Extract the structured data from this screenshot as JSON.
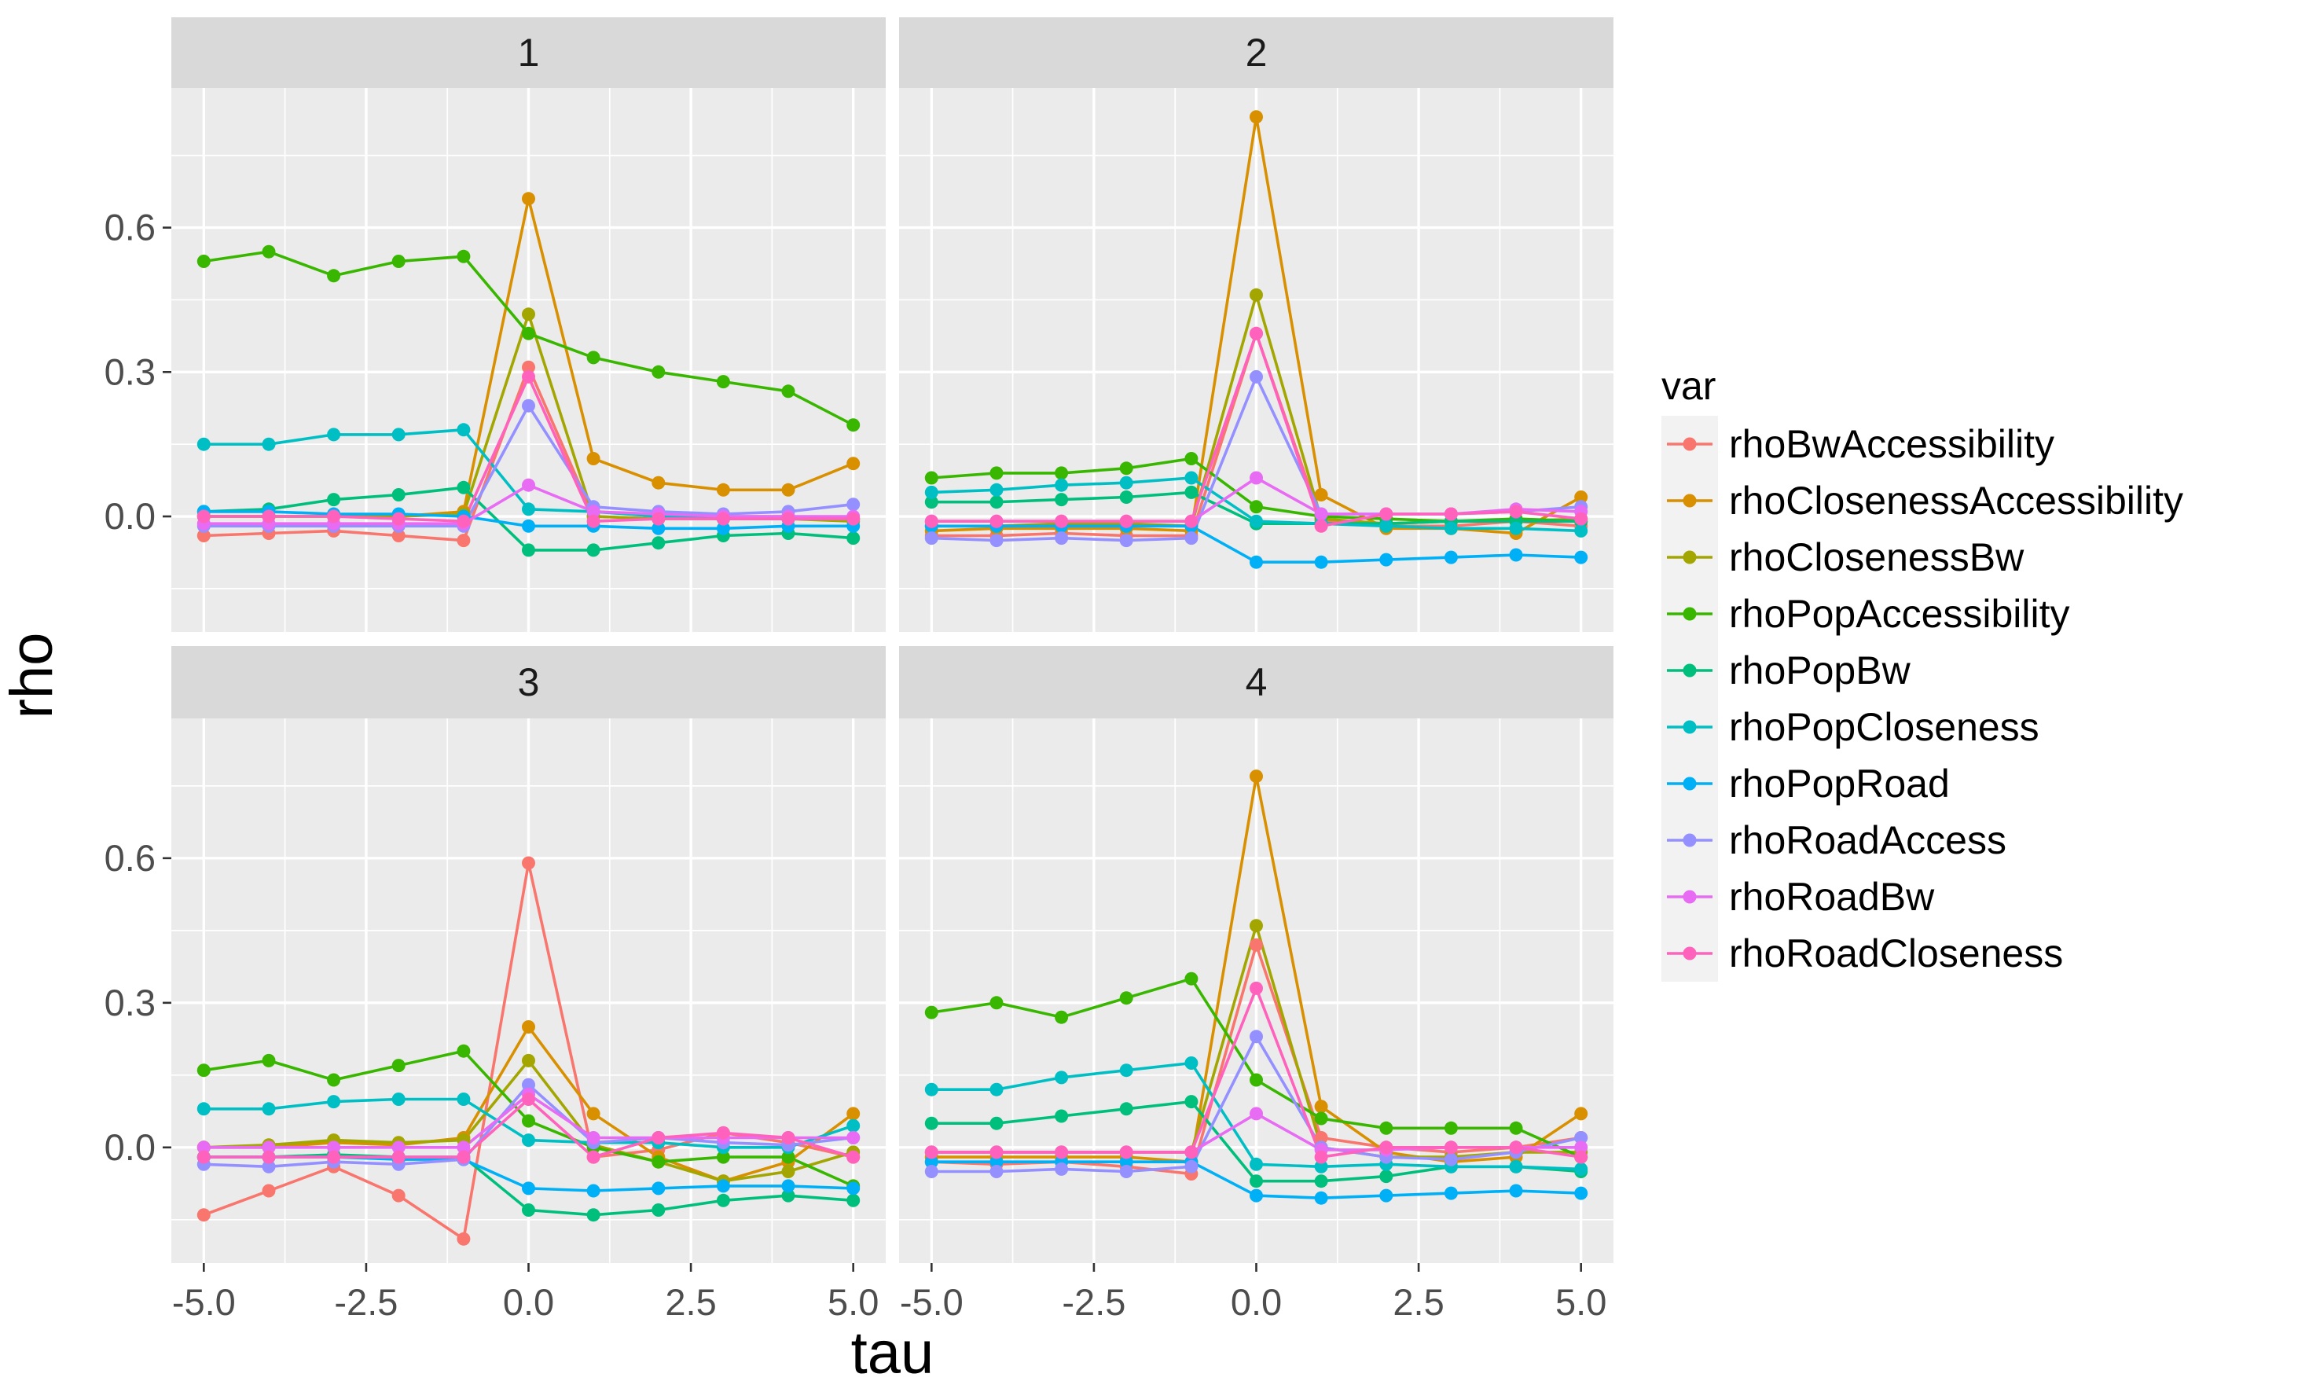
{
  "chart_data": {
    "type": "line",
    "xlabel": "tau",
    "ylabel": "rho",
    "x": [
      -5,
      -4,
      -3,
      -2,
      -1,
      0,
      1,
      2,
      3,
      4,
      5
    ],
    "x_ticks": [
      -5.0,
      -2.5,
      0.0,
      2.5,
      5.0
    ],
    "x_tick_labels": [
      "-5.0",
      "-2.5",
      "0.0",
      "2.5",
      "5.0"
    ],
    "xlim": [
      -5.5,
      5.5
    ],
    "y_ticks": [
      0.0,
      0.3,
      0.6
    ],
    "y_tick_labels": [
      "0.0",
      "0.3",
      "0.6"
    ],
    "ylim": [
      -0.24,
      0.89
    ],
    "grid": true,
    "legend": {
      "title": "var",
      "placement": "right",
      "entries": [
        "rhoBwAccessibility",
        "rhoClosenessAccessibility",
        "rhoClosenessBw",
        "rhoPopAccessibility",
        "rhoPopBw",
        "rhoPopCloseness",
        "rhoPopRoad",
        "rhoRoadAccess",
        "rhoRoadBw",
        "rhoRoadCloseness"
      ]
    },
    "colors": {
      "rhoBwAccessibility": "#F8766D",
      "rhoClosenessAccessibility": "#D89000",
      "rhoClosenessBw": "#A3A500",
      "rhoPopAccessibility": "#39B600",
      "rhoPopBw": "#00BF7D",
      "rhoPopCloseness": "#00BFC4",
      "rhoPopRoad": "#00B0F6",
      "rhoRoadAccess": "#9590FF",
      "rhoRoadBw": "#E76BF3",
      "rhoRoadCloseness": "#FF62BC"
    },
    "panels": [
      {
        "label": "1",
        "series": [
          {
            "name": "rhoBwAccessibility",
            "values": [
              -0.04,
              -0.035,
              -0.03,
              -0.04,
              -0.05,
              0.31,
              0.0,
              -0.005,
              0.0,
              0.0,
              -0.005
            ]
          },
          {
            "name": "rhoClosenessAccessibility",
            "values": [
              0.0,
              0.0,
              0.0,
              0.0,
              0.01,
              0.66,
              0.12,
              0.07,
              0.055,
              0.055,
              0.11
            ]
          },
          {
            "name": "rhoClosenessBw",
            "values": [
              0.0,
              0.0,
              0.0,
              0.0,
              0.005,
              0.42,
              0.0,
              -0.005,
              -0.005,
              -0.005,
              -0.01
            ]
          },
          {
            "name": "rhoPopAccessibility",
            "values": [
              0.53,
              0.55,
              0.5,
              0.53,
              0.54,
              0.38,
              0.33,
              0.3,
              0.28,
              0.26,
              0.19
            ]
          },
          {
            "name": "rhoPopBw",
            "values": [
              0.01,
              0.015,
              0.035,
              0.045,
              0.06,
              -0.07,
              -0.07,
              -0.055,
              -0.04,
              -0.035,
              -0.045
            ]
          },
          {
            "name": "rhoPopCloseness",
            "values": [
              0.15,
              0.15,
              0.17,
              0.17,
              0.18,
              0.015,
              0.01,
              0.0,
              -0.005,
              -0.005,
              -0.005
            ]
          },
          {
            "name": "rhoPopRoad",
            "values": [
              0.01,
              0.01,
              0.005,
              0.005,
              0.0,
              -0.02,
              -0.02,
              -0.025,
              -0.025,
              -0.02,
              -0.02
            ]
          },
          {
            "name": "rhoRoadAccess",
            "values": [
              -0.02,
              -0.02,
              -0.02,
              -0.02,
              -0.02,
              0.23,
              0.02,
              0.01,
              0.005,
              0.01,
              0.025
            ]
          },
          {
            "name": "rhoRoadBw",
            "values": [
              -0.015,
              -0.015,
              -0.015,
              -0.015,
              -0.015,
              0.065,
              0.01,
              0.005,
              0.0,
              0.0,
              0.0
            ]
          },
          {
            "name": "rhoRoadCloseness",
            "values": [
              0.0,
              0.0,
              0.0,
              -0.005,
              -0.01,
              0.29,
              -0.01,
              -0.005,
              -0.005,
              -0.005,
              -0.005
            ]
          }
        ]
      },
      {
        "label": "2",
        "series": [
          {
            "name": "rhoBwAccessibility",
            "values": [
              -0.04,
              -0.04,
              -0.035,
              -0.04,
              -0.04,
              0.38,
              -0.01,
              -0.02,
              -0.02,
              -0.01,
              -0.02
            ]
          },
          {
            "name": "rhoClosenessAccessibility",
            "values": [
              -0.03,
              -0.025,
              -0.025,
              -0.025,
              -0.03,
              0.83,
              0.045,
              -0.025,
              -0.025,
              -0.035,
              0.04
            ]
          },
          {
            "name": "rhoClosenessBw",
            "values": [
              -0.02,
              -0.02,
              -0.015,
              -0.015,
              -0.02,
              0.46,
              -0.005,
              -0.015,
              -0.01,
              -0.01,
              -0.005
            ]
          },
          {
            "name": "rhoPopAccessibility",
            "values": [
              0.08,
              0.09,
              0.09,
              0.1,
              0.12,
              0.02,
              0.0,
              -0.005,
              -0.01,
              -0.005,
              -0.01
            ]
          },
          {
            "name": "rhoPopBw",
            "values": [
              0.03,
              0.03,
              0.035,
              0.04,
              0.05,
              -0.015,
              -0.015,
              -0.015,
              -0.01,
              -0.01,
              -0.01
            ]
          },
          {
            "name": "rhoPopCloseness",
            "values": [
              0.05,
              0.055,
              0.065,
              0.07,
              0.08,
              -0.01,
              -0.015,
              -0.02,
              -0.025,
              -0.025,
              -0.03
            ]
          },
          {
            "name": "rhoPopRoad",
            "values": [
              -0.02,
              -0.02,
              -0.02,
              -0.02,
              -0.02,
              -0.095,
              -0.095,
              -0.09,
              -0.085,
              -0.08,
              -0.085
            ]
          },
          {
            "name": "rhoRoadAccess",
            "values": [
              -0.045,
              -0.05,
              -0.045,
              -0.05,
              -0.045,
              0.29,
              0.005,
              0.005,
              0.005,
              0.01,
              0.02
            ]
          },
          {
            "name": "rhoRoadBw",
            "values": [
              -0.01,
              -0.01,
              -0.01,
              -0.01,
              -0.01,
              0.08,
              0.005,
              0.005,
              0.005,
              0.015,
              0.01
            ]
          },
          {
            "name": "rhoRoadCloseness",
            "values": [
              -0.01,
              -0.01,
              -0.01,
              -0.01,
              -0.01,
              0.38,
              -0.02,
              0.005,
              0.005,
              0.01,
              -0.005
            ]
          }
        ]
      },
      {
        "label": "3",
        "series": [
          {
            "name": "rhoBwAccessibility",
            "values": [
              -0.14,
              -0.09,
              -0.04,
              -0.1,
              -0.19,
              0.59,
              -0.02,
              -0.005,
              0.03,
              0.01,
              -0.02
            ]
          },
          {
            "name": "rhoClosenessAccessibility",
            "values": [
              0.0,
              0.0,
              0.01,
              0.005,
              0.02,
              0.25,
              0.07,
              -0.02,
              -0.07,
              -0.03,
              0.07
            ]
          },
          {
            "name": "rhoClosenessBw",
            "values": [
              0.0,
              0.005,
              0.015,
              0.01,
              0.015,
              0.18,
              0.005,
              -0.03,
              -0.07,
              -0.05,
              -0.01
            ]
          },
          {
            "name": "rhoPopAccessibility",
            "values": [
              0.16,
              0.18,
              0.14,
              0.17,
              0.2,
              0.055,
              0.0,
              -0.03,
              -0.02,
              -0.02,
              -0.08
            ]
          },
          {
            "name": "rhoPopBw",
            "values": [
              -0.02,
              -0.02,
              -0.015,
              -0.02,
              -0.02,
              -0.13,
              -0.14,
              -0.13,
              -0.11,
              -0.1,
              -0.11
            ]
          },
          {
            "name": "rhoPopCloseness",
            "values": [
              0.08,
              0.08,
              0.095,
              0.1,
              0.1,
              0.015,
              0.01,
              0.01,
              0.0,
              0.0,
              0.045
            ]
          },
          {
            "name": "rhoPopRoad",
            "values": [
              -0.02,
              -0.02,
              -0.02,
              -0.025,
              -0.025,
              -0.085,
              -0.09,
              -0.085,
              -0.08,
              -0.08,
              -0.085
            ]
          },
          {
            "name": "rhoRoadAccess",
            "values": [
              -0.035,
              -0.04,
              -0.03,
              -0.035,
              -0.025,
              0.13,
              0.01,
              0.02,
              0.01,
              0.005,
              0.02
            ]
          },
          {
            "name": "rhoRoadBw",
            "values": [
              0.0,
              0.0,
              0.0,
              0.0,
              0.0,
              0.11,
              0.02,
              0.02,
              0.02,
              0.02,
              0.02
            ]
          },
          {
            "name": "rhoRoadCloseness",
            "values": [
              -0.02,
              -0.02,
              -0.02,
              -0.02,
              -0.02,
              0.1,
              -0.02,
              0.02,
              0.03,
              0.02,
              -0.02
            ]
          }
        ]
      },
      {
        "label": "4",
        "series": [
          {
            "name": "rhoBwAccessibility",
            "values": [
              -0.03,
              -0.035,
              -0.03,
              -0.04,
              -0.055,
              0.42,
              0.02,
              0.0,
              -0.01,
              0.0,
              0.02
            ]
          },
          {
            "name": "rhoClosenessAccessibility",
            "values": [
              -0.02,
              -0.02,
              -0.02,
              -0.02,
              -0.03,
              0.77,
              0.085,
              -0.01,
              -0.03,
              -0.02,
              0.07
            ]
          },
          {
            "name": "rhoClosenessBw",
            "values": [
              -0.01,
              -0.01,
              -0.01,
              -0.01,
              -0.01,
              0.46,
              0.0,
              -0.02,
              -0.02,
              -0.01,
              -0.01
            ]
          },
          {
            "name": "rhoPopAccessibility",
            "values": [
              0.28,
              0.3,
              0.27,
              0.31,
              0.35,
              0.14,
              0.06,
              0.04,
              0.04,
              0.04,
              -0.02
            ]
          },
          {
            "name": "rhoPopBw",
            "values": [
              0.05,
              0.05,
              0.065,
              0.08,
              0.095,
              -0.07,
              -0.07,
              -0.06,
              -0.04,
              -0.04,
              -0.05
            ]
          },
          {
            "name": "rhoPopCloseness",
            "values": [
              0.12,
              0.12,
              0.145,
              0.16,
              0.175,
              -0.035,
              -0.04,
              -0.035,
              -0.04,
              -0.04,
              -0.045
            ]
          },
          {
            "name": "rhoPopRoad",
            "values": [
              -0.03,
              -0.03,
              -0.03,
              -0.03,
              -0.03,
              -0.1,
              -0.105,
              -0.1,
              -0.095,
              -0.09,
              -0.095
            ]
          },
          {
            "name": "rhoRoadAccess",
            "values": [
              -0.05,
              -0.05,
              -0.045,
              -0.05,
              -0.04,
              0.23,
              0.0,
              -0.02,
              -0.025,
              -0.01,
              0.02
            ]
          },
          {
            "name": "rhoRoadBw",
            "values": [
              -0.01,
              -0.01,
              -0.01,
              -0.01,
              -0.01,
              0.07,
              -0.005,
              -0.005,
              0.0,
              0.0,
              0.0
            ]
          },
          {
            "name": "rhoRoadCloseness",
            "values": [
              -0.01,
              -0.01,
              -0.01,
              -0.01,
              -0.01,
              0.33,
              -0.02,
              0.0,
              0.0,
              0.0,
              -0.02
            ]
          }
        ]
      }
    ]
  }
}
